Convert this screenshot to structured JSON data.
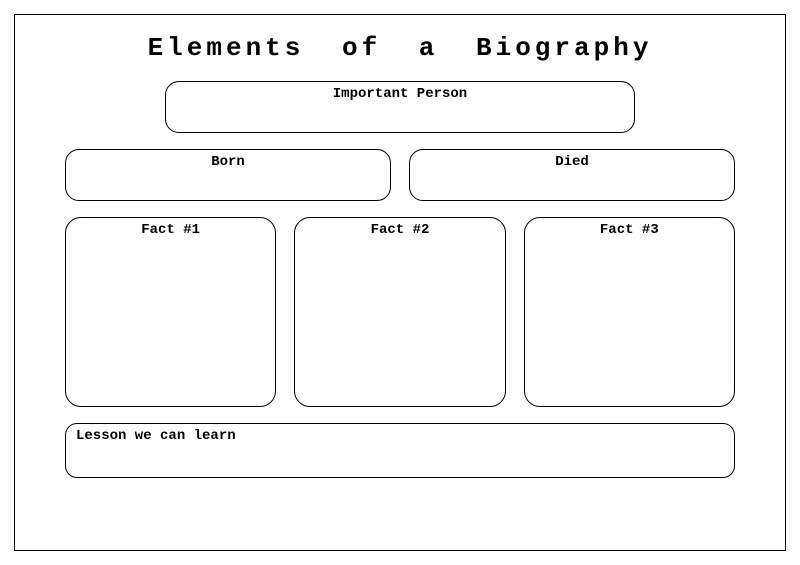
{
  "worksheet": {
    "title": "Elements of a Biography",
    "sections": {
      "person": {
        "label": "Important Person"
      },
      "born": {
        "label": "Born"
      },
      "died": {
        "label": "Died"
      },
      "fact1": {
        "label": "Fact #1"
      },
      "fact2": {
        "label": "Fact #2"
      },
      "fact3": {
        "label": "Fact #3"
      },
      "lesson": {
        "label": "Lesson we can learn"
      }
    },
    "style": {
      "background_color": "#ffffff",
      "border_color": "#000000",
      "text_color": "#000000",
      "title_fontsize": 26,
      "label_fontsize": 14,
      "font_family": "Courier New",
      "box_border_radius": 12,
      "box_border_width": 1.5,
      "outer_frame_border_width": 1,
      "structure": "graphic-organizer",
      "rows": [
        {
          "boxes": 1,
          "height": 52,
          "align": "center",
          "labels": [
            "Important Person"
          ]
        },
        {
          "boxes": 2,
          "height": 52,
          "align": "stretch",
          "labels": [
            "Born",
            "Died"
          ]
        },
        {
          "boxes": 3,
          "height": 190,
          "align": "stretch",
          "labels": [
            "Fact #1",
            "Fact #2",
            "Fact #3"
          ]
        },
        {
          "boxes": 1,
          "height": 55,
          "align": "stretch",
          "labels": [
            "Lesson we can learn"
          ]
        }
      ]
    }
  }
}
